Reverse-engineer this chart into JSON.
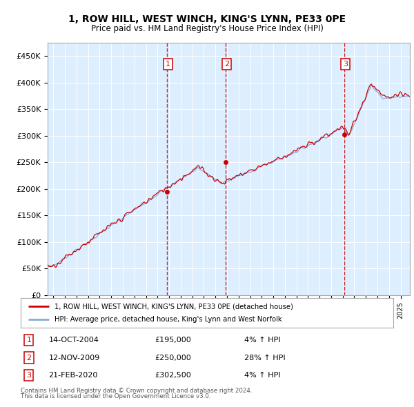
{
  "title": "1, ROW HILL, WEST WINCH, KING'S LYNN, PE33 0PE",
  "subtitle": "Price paid vs. HM Land Registry's House Price Index (HPI)",
  "ylabel_ticks": [
    "£0",
    "£50K",
    "£100K",
    "£150K",
    "£200K",
    "£250K",
    "£300K",
    "£350K",
    "£400K",
    "£450K"
  ],
  "ytick_values": [
    0,
    50000,
    100000,
    150000,
    200000,
    250000,
    300000,
    350000,
    400000,
    450000
  ],
  "ylim": [
    0,
    475000
  ],
  "xlim_start": 1994.5,
  "xlim_end": 2025.8,
  "sale_dates": [
    2004.79,
    2009.87,
    2020.13
  ],
  "sale_prices": [
    195000,
    250000,
    302500
  ],
  "sale_labels": [
    "1",
    "2",
    "3"
  ],
  "sale_info": [
    {
      "num": "1",
      "date": "14-OCT-2004",
      "price": "£195,000",
      "pct": "4%",
      "dir": "↑"
    },
    {
      "num": "2",
      "date": "12-NOV-2009",
      "price": "£250,000",
      "pct": "28%",
      "dir": "↑"
    },
    {
      "num": "3",
      "date": "21-FEB-2020",
      "price": "£302,500",
      "pct": "4%",
      "dir": "↑"
    }
  ],
  "legend_line1": "1, ROW HILL, WEST WINCH, KING'S LYNN, PE33 0PE (detached house)",
  "legend_line2": "HPI: Average price, detached house, King's Lynn and West Norfolk",
  "footer1": "Contains HM Land Registry data © Crown copyright and database right 2024.",
  "footer2": "This data is licensed under the Open Government Licence v3.0.",
  "line_color_red": "#cc0000",
  "line_color_blue": "#88aadd",
  "bg_color": "#ddeeff",
  "sale_box_color": "#cc0000",
  "dashed_line_color": "#cc0000"
}
